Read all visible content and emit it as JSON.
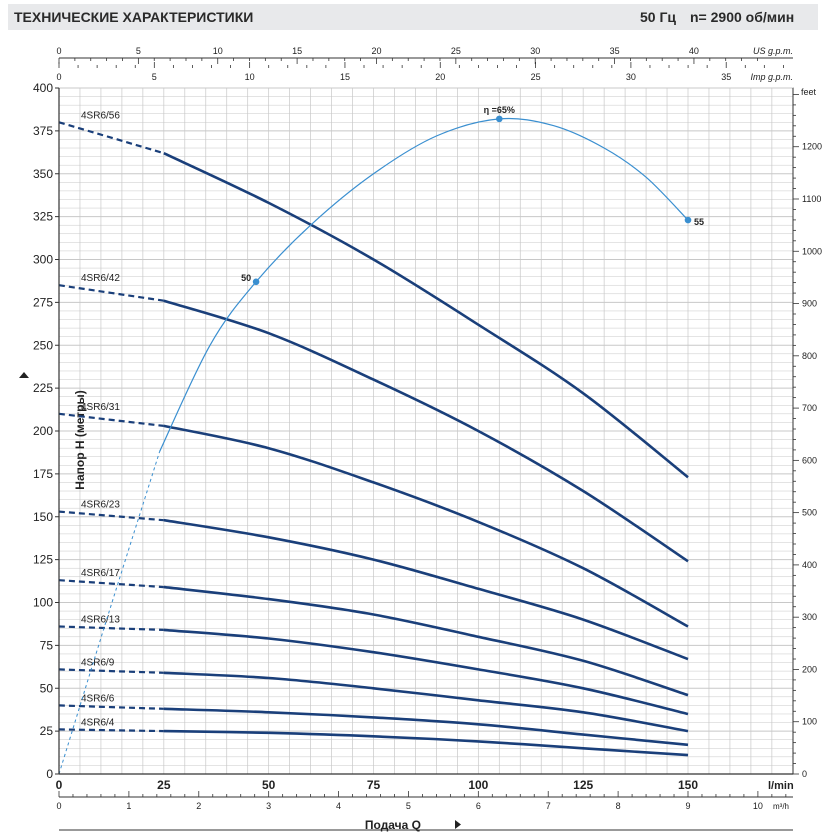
{
  "header": {
    "title": "ТЕХНИЧЕСКИЕ ХАРАКТЕРИСТИКИ",
    "frequency": "50 Гц",
    "speed": "n= 2900  об/мин"
  },
  "chart_data": {
    "type": "line",
    "ylabel": "Напор H (метры)",
    "xlabel": "Подача Q",
    "ylim": [
      0,
      400
    ],
    "xlim_lmin": [
      0,
      150
    ],
    "grid": true,
    "axes": {
      "left_unit": "",
      "right_unit": "feet",
      "top_us_unit": "US g.p.m.",
      "top_imp_unit": "Imp g.p.m.",
      "bottom_lmin_unit": "l/min",
      "bottom_m3h_unit": "m³/h",
      "left_ticks": [
        "0",
        "25",
        "50",
        "75",
        "100",
        "125",
        "150",
        "175",
        "200",
        "225",
        "250",
        "275",
        "300",
        "325",
        "350",
        "375",
        "400"
      ],
      "right_ticks": [
        "0",
        "100",
        "200",
        "300",
        "400",
        "500",
        "600",
        "700",
        "800",
        "900",
        "1000",
        "1100",
        "1200"
      ],
      "top_us_ticks": [
        "0",
        "5",
        "10",
        "15",
        "20",
        "25",
        "30",
        "35",
        "40"
      ],
      "top_imp_ticks": [
        "0",
        "5",
        "10",
        "15",
        "20",
        "25",
        "30",
        "35"
      ],
      "bottom_lmin_ticks": [
        "0",
        "25",
        "50",
        "75",
        "100",
        "125",
        "150"
      ],
      "bottom_m3h_ticks": [
        "0",
        "1",
        "2",
        "3",
        "4",
        "5",
        "6",
        "7",
        "8",
        "9",
        "10"
      ]
    },
    "series": [
      {
        "name": "4SR6/56",
        "x": [
          0,
          25,
          50,
          75,
          100,
          125,
          150
        ],
        "values": [
          380,
          362,
          333,
          300,
          262,
          222,
          173
        ],
        "dashed_until": 25
      },
      {
        "name": "4SR6/42",
        "x": [
          0,
          25,
          50,
          75,
          100,
          125,
          150
        ],
        "values": [
          285,
          276,
          257,
          230,
          200,
          165,
          124
        ],
        "dashed_until": 25
      },
      {
        "name": "4SR6/31",
        "x": [
          0,
          25,
          50,
          75,
          100,
          125,
          150
        ],
        "values": [
          210,
          203,
          190,
          170,
          147,
          120,
          86
        ],
        "dashed_until": 25
      },
      {
        "name": "4SR6/23",
        "x": [
          0,
          25,
          50,
          75,
          100,
          125,
          150
        ],
        "values": [
          153,
          148,
          138,
          125,
          108,
          90,
          67
        ],
        "dashed_until": 25
      },
      {
        "name": "4SR6/17",
        "x": [
          0,
          25,
          50,
          75,
          100,
          125,
          150
        ],
        "values": [
          113,
          109,
          102,
          93,
          80,
          66,
          46
        ],
        "dashed_until": 25
      },
      {
        "name": "4SR6/13",
        "x": [
          0,
          25,
          50,
          75,
          100,
          125,
          150
        ],
        "values": [
          86,
          84,
          79,
          71,
          61,
          50,
          35
        ],
        "dashed_until": 25
      },
      {
        "name": "4SR6/9",
        "x": [
          0,
          25,
          50,
          75,
          100,
          125,
          150
        ],
        "values": [
          61,
          59,
          56,
          50,
          43,
          36,
          25
        ],
        "dashed_until": 25
      },
      {
        "name": "4SR6/6",
        "x": [
          0,
          25,
          50,
          75,
          100,
          125,
          150
        ],
        "values": [
          40,
          38,
          36,
          33,
          29,
          23,
          17
        ],
        "dashed_until": 25
      },
      {
        "name": "4SR6/4",
        "x": [
          0,
          25,
          50,
          75,
          100,
          125,
          150
        ],
        "values": [
          26,
          25,
          24,
          22,
          19,
          15,
          11
        ],
        "dashed_until": 25
      }
    ],
    "efficiency_curve": {
      "label": "η =65%",
      "x": [
        0,
        12,
        24,
        36,
        47,
        60,
        75,
        90,
        105,
        118,
        130,
        140,
        150
      ],
      "values": [
        0,
        95,
        188,
        250,
        287,
        320,
        350,
        372,
        382,
        378,
        365,
        348,
        323
      ],
      "dashed_until": 24,
      "markers": [
        {
          "label": "50",
          "x": 47,
          "y": 287
        },
        {
          "label": "η =65%",
          "x": 105,
          "y": 382
        },
        {
          "label": "55",
          "x": 150,
          "y": 323
        }
      ]
    },
    "colors": {
      "curve": "#1a3f7a",
      "efficiency": "#3a8fd0",
      "grid": "#c8c8c8",
      "header_bg": "#e8e9eb"
    }
  }
}
